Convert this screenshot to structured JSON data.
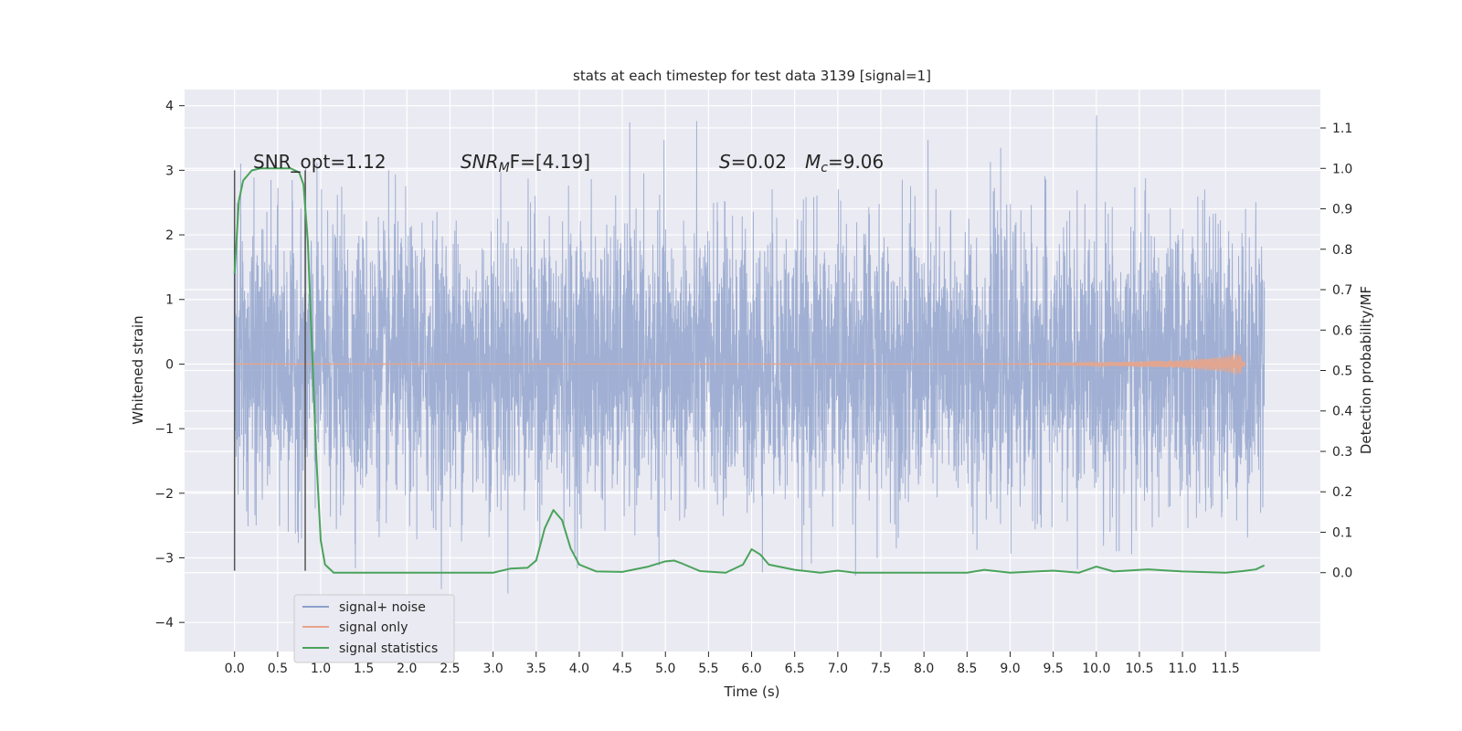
{
  "chart_data": {
    "type": "line",
    "title": "stats at each timestep for test data 3139 [signal=1]",
    "xlabel": "Time (s)",
    "ylabel_left": "Whitened strain",
    "ylabel_right": "Detection probability/MF",
    "xlim": [
      -0.58,
      12.6
    ],
    "ylim_left": [
      -4.45,
      4.25
    ],
    "ylim_right": [
      -0.195,
      1.195
    ],
    "x_ticks": [
      "0.0",
      "0.5",
      "1.0",
      "1.5",
      "2.0",
      "2.5",
      "3.0",
      "3.5",
      "4.0",
      "4.5",
      "5.0",
      "5.5",
      "6.0",
      "6.5",
      "7.0",
      "7.5",
      "8.0",
      "8.5",
      "9.0",
      "9.5",
      "10.0",
      "10.5",
      "11.0",
      "11.5"
    ],
    "y_ticks_left": [
      "4",
      "3",
      "2",
      "1",
      "0",
      "−1",
      "−2",
      "−3",
      "−4"
    ],
    "y_ticks_right": [
      "1.1",
      "1.0",
      "0.9",
      "0.8",
      "0.7",
      "0.6",
      "0.5",
      "0.4",
      "0.3",
      "0.2",
      "0.1",
      "0.0"
    ],
    "grid": true,
    "legend_position": "bottom-left",
    "annotations": {
      "snr_opt": "SNR_opt=1.12",
      "snr_mf_base": "SNR",
      "snr_mf_sub": "M",
      "snr_mf_rest": "F=[4.19]",
      "s_symbol": "S",
      "s_value": "=0.02",
      "mc_symbol": "M",
      "mc_sub": "c",
      "mc_value": "=9.06"
    },
    "vertical_markers": [
      0.0,
      0.82
    ],
    "series": [
      {
        "name": "signal+ noise",
        "color": "#8da0cb",
        "description_value": "whitened strain, random noise approximately within -4.1 to 3.85 over 0 to 11.95 s"
      },
      {
        "name": "signal only",
        "color": "#e6a58c",
        "points": [
          [
            0,
            0
          ],
          [
            9,
            0
          ],
          [
            10,
            0.02
          ],
          [
            11,
            0.06
          ],
          [
            11.5,
            0.12
          ],
          [
            11.65,
            0.18
          ],
          [
            11.72,
            0.05
          ]
        ]
      },
      {
        "name": "signal statistics",
        "color": "#4aa35b",
        "points": [
          [
            0.0,
            0.74
          ],
          [
            0.05,
            0.92
          ],
          [
            0.1,
            0.97
          ],
          [
            0.2,
            0.995
          ],
          [
            0.3,
            1.0
          ],
          [
            0.5,
            1.0
          ],
          [
            0.65,
            1.0
          ],
          [
            0.75,
            0.99
          ],
          [
            0.8,
            0.96
          ],
          [
            0.85,
            0.82
          ],
          [
            0.9,
            0.55
          ],
          [
            0.95,
            0.28
          ],
          [
            1.0,
            0.08
          ],
          [
            1.05,
            0.02
          ],
          [
            1.15,
            0.0
          ],
          [
            1.5,
            0.0
          ],
          [
            2.0,
            0.0
          ],
          [
            2.5,
            0.0
          ],
          [
            3.0,
            0.0
          ],
          [
            3.2,
            0.01
          ],
          [
            3.4,
            0.012
          ],
          [
            3.5,
            0.03
          ],
          [
            3.6,
            0.11
          ],
          [
            3.7,
            0.155
          ],
          [
            3.8,
            0.13
          ],
          [
            3.9,
            0.06
          ],
          [
            4.0,
            0.02
          ],
          [
            4.2,
            0.003
          ],
          [
            4.5,
            0.002
          ],
          [
            4.8,
            0.015
          ],
          [
            5.0,
            0.028
          ],
          [
            5.1,
            0.03
          ],
          [
            5.2,
            0.022
          ],
          [
            5.4,
            0.004
          ],
          [
            5.7,
            0.0
          ],
          [
            5.9,
            0.02
          ],
          [
            6.0,
            0.058
          ],
          [
            6.1,
            0.045
          ],
          [
            6.2,
            0.02
          ],
          [
            6.5,
            0.007
          ],
          [
            6.8,
            0.0
          ],
          [
            7.0,
            0.005
          ],
          [
            7.2,
            0.0
          ],
          [
            8.0,
            0.0
          ],
          [
            8.5,
            0.0
          ],
          [
            8.7,
            0.007
          ],
          [
            9.0,
            0.0
          ],
          [
            9.5,
            0.005
          ],
          [
            9.8,
            0.0
          ],
          [
            10.0,
            0.015
          ],
          [
            10.2,
            0.003
          ],
          [
            10.6,
            0.008
          ],
          [
            11.0,
            0.003
          ],
          [
            11.5,
            0.0
          ],
          [
            11.7,
            0.004
          ],
          [
            11.85,
            0.008
          ],
          [
            11.95,
            0.018
          ]
        ]
      }
    ]
  }
}
